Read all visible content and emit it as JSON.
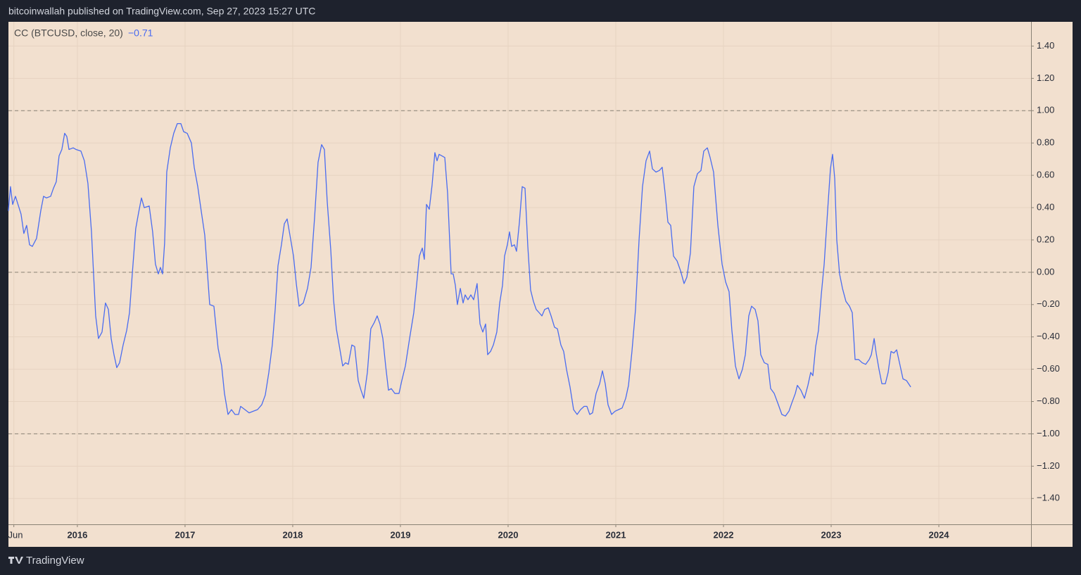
{
  "header": "bitcoinwallah published on TradingView.com, Sep 27, 2023 15:27 UTC",
  "footer": "TradingView",
  "chart_data": {
    "type": "line",
    "x": [
      2015.359,
      2015.379,
      2015.399,
      2015.425,
      2015.477,
      2015.503,
      2015.529,
      2015.556,
      2015.582,
      2015.621,
      2015.66,
      2015.686,
      2015.712,
      2015.752,
      2015.778,
      2015.804,
      2015.83,
      2015.856,
      2015.882,
      2015.902,
      2015.922,
      2015.961,
      2015.987,
      2016.033,
      2016.065,
      2016.098,
      2016.131,
      2016.17,
      2016.196,
      2016.229,
      2016.261,
      2016.288,
      2016.314,
      2016.34,
      2016.366,
      2016.392,
      2016.425,
      2016.458,
      2016.484,
      2016.51,
      2016.542,
      2016.569,
      2016.595,
      2016.621,
      2016.667,
      2016.699,
      2016.725,
      2016.752,
      2016.771,
      2016.791,
      2016.81,
      2016.83,
      2016.863,
      2016.895,
      2016.928,
      2016.961,
      2016.987,
      2017.02,
      2017.059,
      2017.085,
      2017.118,
      2017.15,
      2017.183,
      2017.229,
      2017.268,
      2017.307,
      2017.34,
      2017.366,
      2017.399,
      2017.431,
      2017.464,
      2017.497,
      2017.516,
      2017.556,
      2017.595,
      2017.634,
      2017.673,
      2017.712,
      2017.745,
      2017.778,
      2017.81,
      2017.837,
      2017.863,
      2017.895,
      2017.922,
      2017.948,
      2017.974,
      2018.007,
      2018.033,
      2018.059,
      2018.098,
      2018.137,
      2018.17,
      2018.203,
      2018.235,
      2018.268,
      2018.294,
      2018.32,
      2018.353,
      2018.379,
      2018.405,
      2018.431,
      2018.464,
      2018.49,
      2018.516,
      2018.549,
      2018.575,
      2018.608,
      2018.634,
      2018.66,
      2018.693,
      2018.725,
      2018.758,
      2018.784,
      2018.81,
      2018.837,
      2018.863,
      2018.889,
      2018.915,
      2018.948,
      2018.987,
      2019.013,
      2019.046,
      2019.085,
      2019.124,
      2019.15,
      2019.176,
      2019.203,
      2019.222,
      2019.242,
      2019.268,
      2019.294,
      2019.32,
      2019.34,
      2019.359,
      2019.386,
      2019.412,
      2019.438,
      2019.471,
      2019.49,
      2019.51,
      2019.529,
      2019.556,
      2019.582,
      2019.601,
      2019.627,
      2019.654,
      2019.68,
      2019.712,
      2019.739,
      2019.765,
      2019.791,
      2019.81,
      2019.837,
      2019.863,
      2019.895,
      2019.922,
      2019.948,
      2019.967,
      2019.993,
      2020.013,
      2020.033,
      2020.059,
      2020.078,
      2020.105,
      2020.131,
      2020.157,
      2020.183,
      2020.209,
      2020.235,
      2020.261,
      2020.288,
      2020.314,
      2020.34,
      2020.373,
      2020.399,
      2020.431,
      2020.458,
      2020.49,
      2020.516,
      2020.542,
      2020.575,
      2020.608,
      2020.641,
      2020.673,
      2020.706,
      2020.732,
      2020.758,
      2020.784,
      2020.817,
      2020.85,
      2020.876,
      2020.902,
      2020.928,
      2020.961,
      2020.993,
      2021.026,
      2021.059,
      2021.092,
      2021.118,
      2021.15,
      2021.183,
      2021.216,
      2021.248,
      2021.281,
      2021.314,
      2021.34,
      2021.373,
      2021.405,
      2021.431,
      2021.458,
      2021.484,
      2021.51,
      2021.536,
      2021.569,
      2021.601,
      2021.634,
      2021.66,
      2021.693,
      2021.725,
      2021.758,
      2021.791,
      2021.817,
      2021.85,
      2021.876,
      2021.908,
      2021.948,
      2021.987,
      2022.02,
      2022.052,
      2022.078,
      2022.111,
      2022.144,
      2022.176,
      2022.203,
      2022.235,
      2022.261,
      2022.294,
      2022.32,
      2022.346,
      2022.379,
      2022.412,
      2022.438,
      2022.471,
      2022.51,
      2022.542,
      2022.575,
      2022.608,
      2022.634,
      2022.667,
      2022.686,
      2022.719,
      2022.752,
      2022.784,
      2022.81,
      2022.83,
      2022.856,
      2022.882,
      2022.908,
      2022.935,
      2022.967,
      2022.993,
      2023.013,
      2023.033,
      2023.052,
      2023.078,
      2023.105,
      2023.137,
      2023.17,
      2023.196,
      2023.222,
      2023.255,
      2023.288,
      2023.32,
      2023.353,
      2023.373,
      2023.399,
      2023.418,
      2023.444,
      2023.471,
      2023.503,
      2023.529,
      2023.556,
      2023.582,
      2023.608,
      2023.641,
      2023.667,
      2023.699,
      2023.739
    ],
    "series": [
      {
        "name": "CC (BTCUSD, close, 20)",
        "color": "#4a6cf0",
        "last_value_label": "−0.71",
        "values": [
          0.38,
          0.53,
          0.42,
          0.47,
          0.36,
          0.24,
          0.29,
          0.17,
          0.16,
          0.21,
          0.38,
          0.47,
          0.46,
          0.47,
          0.52,
          0.56,
          0.72,
          0.76,
          0.86,
          0.84,
          0.76,
          0.77,
          0.76,
          0.75,
          0.69,
          0.55,
          0.25,
          -0.27,
          -0.41,
          -0.37,
          -0.19,
          -0.23,
          -0.41,
          -0.51,
          -0.59,
          -0.56,
          -0.45,
          -0.36,
          -0.25,
          -0.01,
          0.27,
          0.37,
          0.46,
          0.4,
          0.41,
          0.25,
          0.05,
          -0.01,
          0.03,
          -0.01,
          0.18,
          0.62,
          0.77,
          0.86,
          0.92,
          0.92,
          0.87,
          0.86,
          0.8,
          0.65,
          0.53,
          0.38,
          0.23,
          -0.2,
          -0.21,
          -0.47,
          -0.58,
          -0.75,
          -0.88,
          -0.85,
          -0.88,
          -0.88,
          -0.83,
          -0.85,
          -0.87,
          -0.86,
          -0.85,
          -0.82,
          -0.76,
          -0.62,
          -0.45,
          -0.23,
          0.04,
          0.17,
          0.3,
          0.33,
          0.23,
          0.1,
          -0.07,
          -0.21,
          -0.19,
          -0.1,
          0.03,
          0.34,
          0.68,
          0.79,
          0.76,
          0.44,
          0.14,
          -0.17,
          -0.35,
          -0.45,
          -0.58,
          -0.56,
          -0.57,
          -0.45,
          -0.46,
          -0.67,
          -0.73,
          -0.78,
          -0.62,
          -0.35,
          -0.31,
          -0.27,
          -0.32,
          -0.41,
          -0.58,
          -0.73,
          -0.72,
          -0.75,
          -0.75,
          -0.67,
          -0.58,
          -0.41,
          -0.25,
          -0.08,
          0.1,
          0.15,
          0.08,
          0.42,
          0.39,
          0.54,
          0.74,
          0.69,
          0.73,
          0.72,
          0.71,
          0.49,
          -0.01,
          -0.01,
          -0.08,
          -0.2,
          -0.1,
          -0.19,
          -0.14,
          -0.17,
          -0.14,
          -0.17,
          -0.07,
          -0.32,
          -0.37,
          -0.32,
          -0.51,
          -0.49,
          -0.45,
          -0.37,
          -0.19,
          -0.08,
          0.1,
          0.17,
          0.25,
          0.16,
          0.17,
          0.13,
          0.31,
          0.53,
          0.52,
          0.16,
          -0.11,
          -0.18,
          -0.23,
          -0.25,
          -0.27,
          -0.23,
          -0.22,
          -0.27,
          -0.34,
          -0.35,
          -0.45,
          -0.49,
          -0.6,
          -0.71,
          -0.85,
          -0.88,
          -0.85,
          -0.83,
          -0.83,
          -0.88,
          -0.87,
          -0.75,
          -0.69,
          -0.61,
          -0.69,
          -0.82,
          -0.88,
          -0.86,
          -0.85,
          -0.84,
          -0.78,
          -0.7,
          -0.49,
          -0.23,
          0.2,
          0.53,
          0.69,
          0.75,
          0.64,
          0.62,
          0.63,
          0.65,
          0.49,
          0.31,
          0.29,
          0.1,
          0.07,
          0.01,
          -0.07,
          -0.03,
          0.12,
          0.53,
          0.61,
          0.63,
          0.75,
          0.77,
          0.71,
          0.62,
          0.29,
          0.05,
          -0.06,
          -0.12,
          -0.36,
          -0.58,
          -0.66,
          -0.6,
          -0.51,
          -0.27,
          -0.21,
          -0.23,
          -0.3,
          -0.51,
          -0.56,
          -0.57,
          -0.72,
          -0.75,
          -0.82,
          -0.88,
          -0.89,
          -0.86,
          -0.81,
          -0.75,
          -0.7,
          -0.73,
          -0.78,
          -0.7,
          -0.62,
          -0.64,
          -0.46,
          -0.36,
          -0.14,
          0.05,
          0.38,
          0.64,
          0.73,
          0.58,
          0.2,
          -0.01,
          -0.1,
          -0.18,
          -0.21,
          -0.25,
          -0.54,
          -0.54,
          -0.56,
          -0.57,
          -0.54,
          -0.51,
          -0.41,
          -0.5,
          -0.6,
          -0.69,
          -0.69,
          -0.62,
          -0.49,
          -0.5,
          -0.48,
          -0.58,
          -0.66,
          -0.67,
          -0.71
        ]
      }
    ],
    "xlim": [
      2015.36,
      2024.856
    ],
    "xticks": [
      {
        "value": 2015.41,
        "label": "Jun"
      },
      2016,
      2017,
      2018,
      2019,
      2020,
      2021,
      2022,
      2023,
      2024
    ],
    "ylim": [
      -1.56,
      1.55
    ],
    "yticks": [
      {
        "value": 1.4,
        "label": "1.40"
      },
      {
        "value": 1.2,
        "label": "1.20"
      },
      {
        "value": 1,
        "label": "1.00"
      },
      {
        "value": 0.8,
        "label": "0.80"
      },
      {
        "value": 0.6,
        "label": "0.60"
      },
      {
        "value": 0.4,
        "label": "0.40"
      },
      {
        "value": 0.2,
        "label": "0.20"
      },
      {
        "value": 0,
        "label": "0.00"
      },
      {
        "value": -0.2,
        "label": "−0.20"
      },
      {
        "value": -0.4,
        "label": "−0.40"
      },
      {
        "value": -0.6,
        "label": "−0.60"
      },
      {
        "value": -0.8,
        "label": "−0.80"
      },
      {
        "value": -1,
        "label": "−1.00"
      },
      {
        "value": -1.2,
        "label": "−1.20"
      },
      {
        "value": -1.4,
        "label": "−1.40"
      }
    ],
    "hlines": [
      1,
      0,
      -1
    ],
    "grid": true
  }
}
